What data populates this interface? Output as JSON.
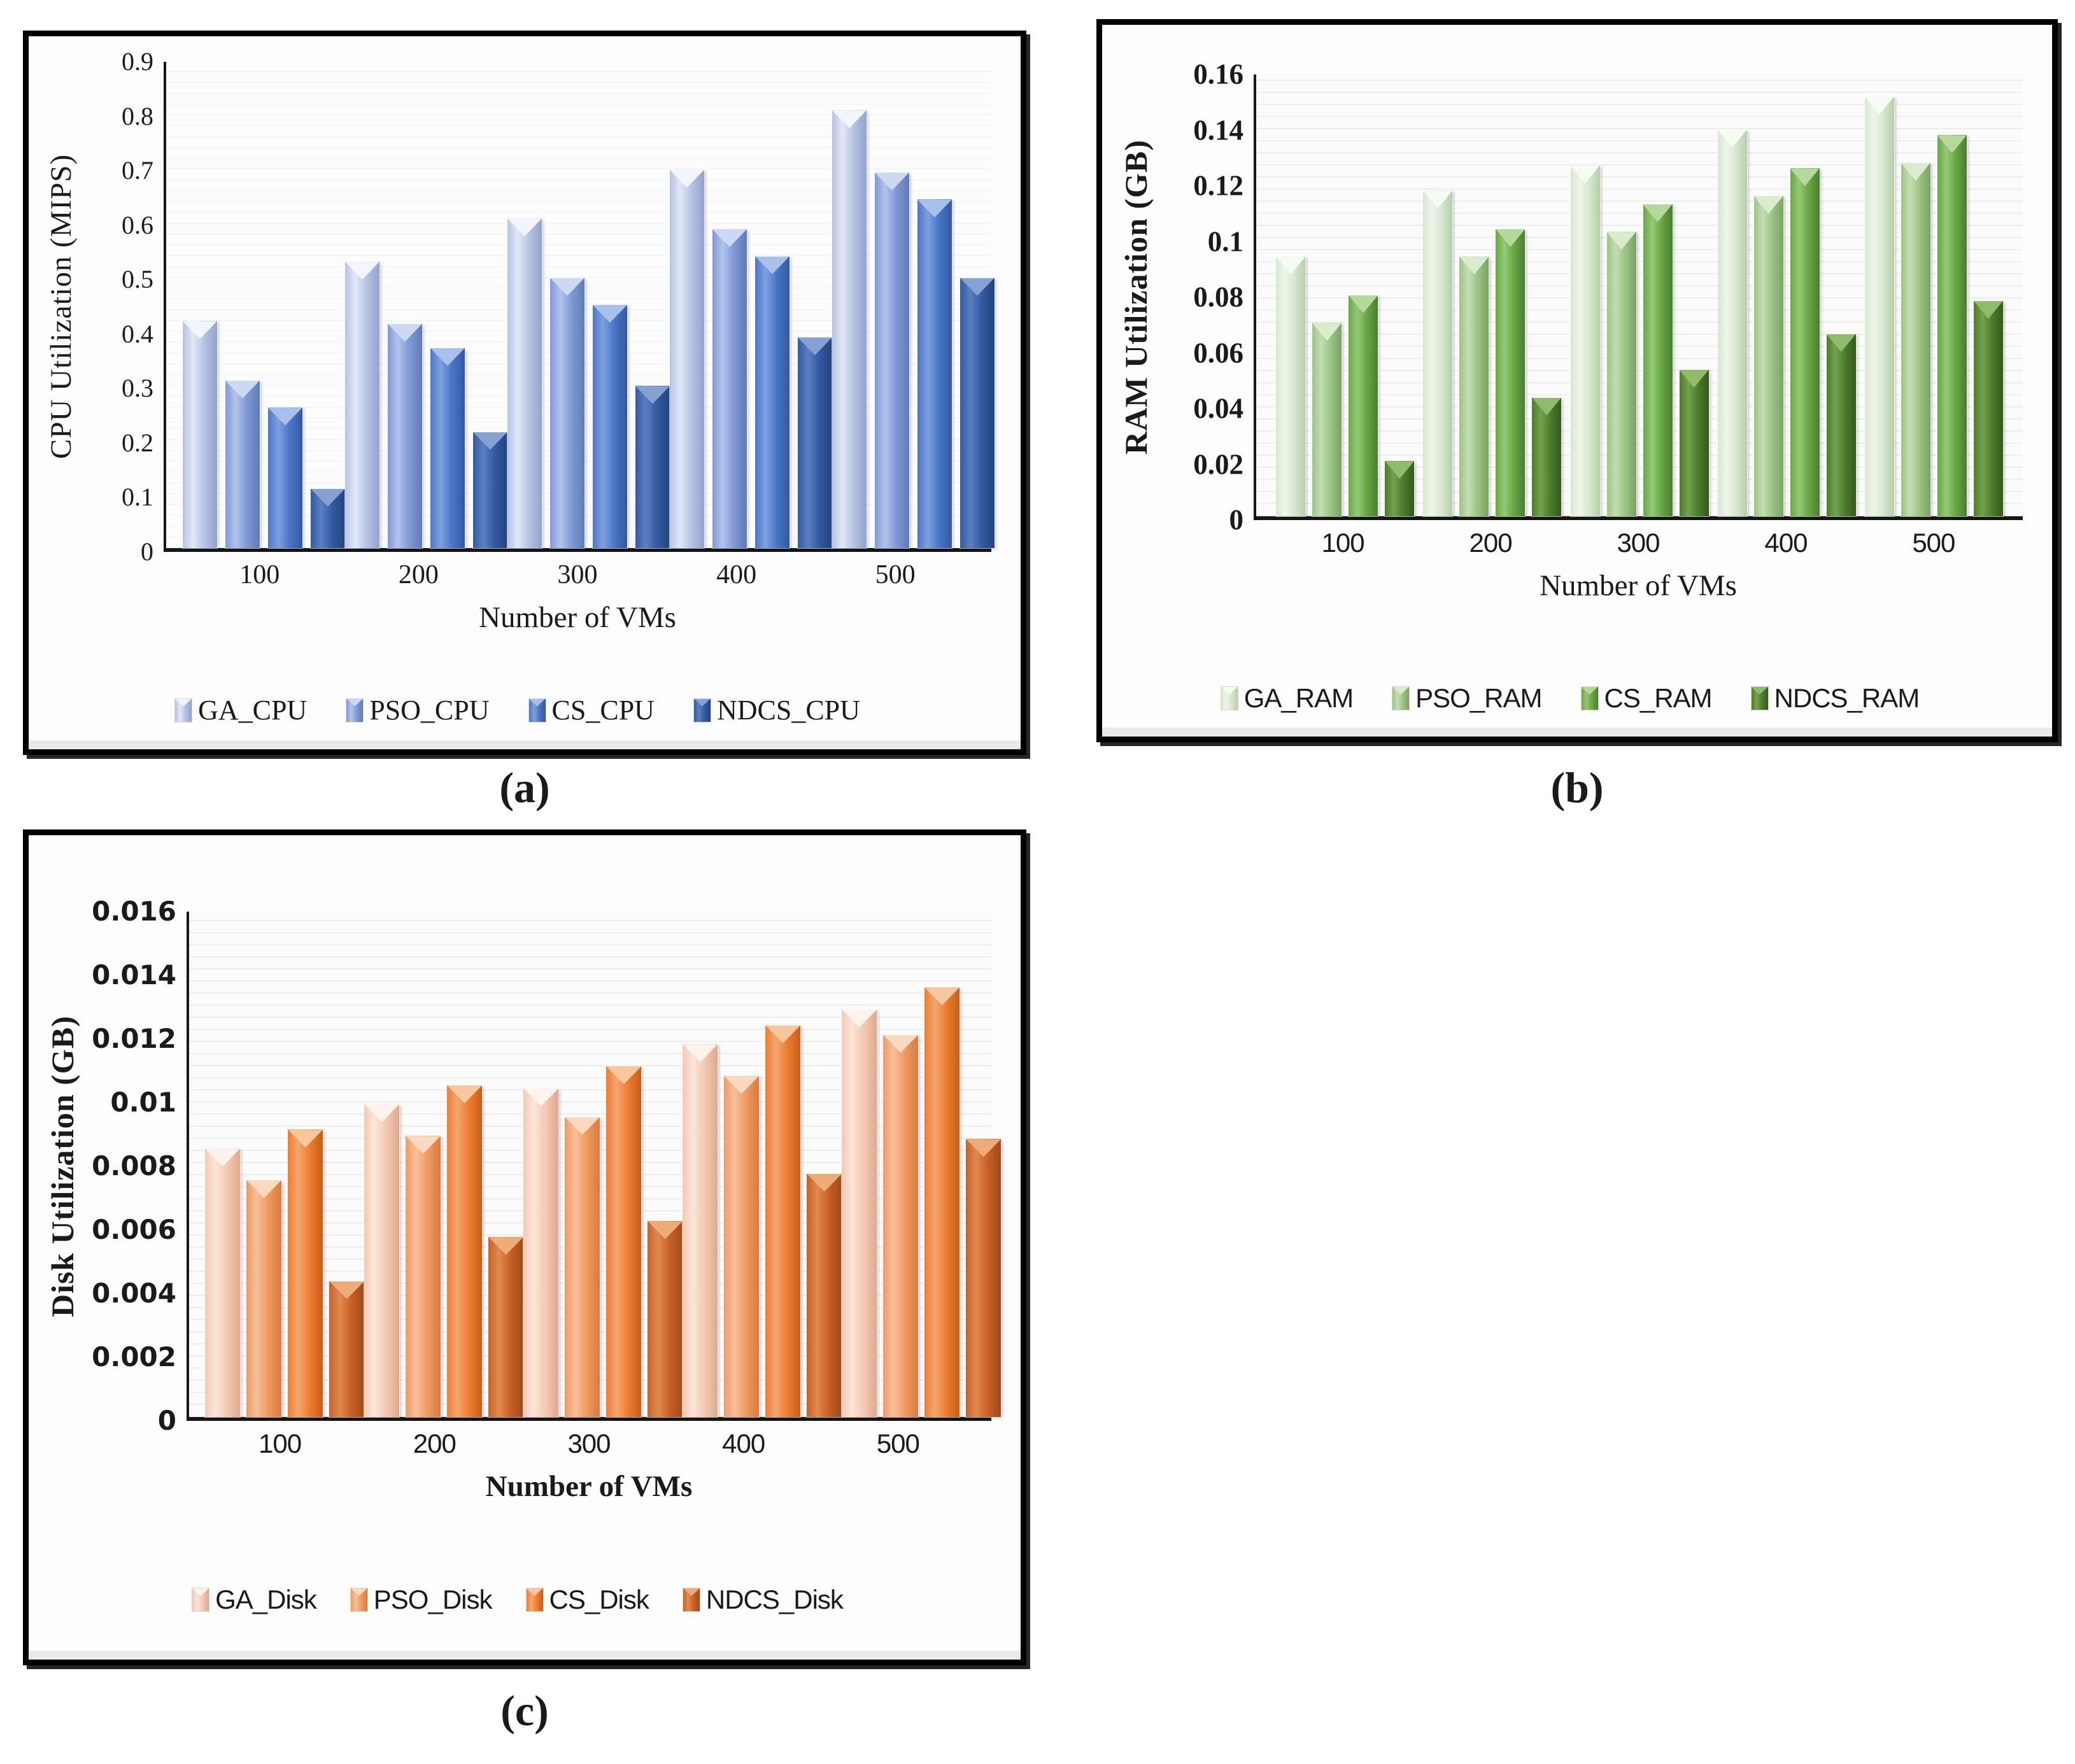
{
  "figure": {
    "captions": [
      "(a)",
      "(b)",
      "(c)"
    ]
  },
  "chart_data": [
    {
      "type": "bar",
      "title": "",
      "ylabel": "CPU Utilization (MIPS)",
      "xlabel": "Number of VMs",
      "ylim": [
        0,
        0.9
      ],
      "grid": "horizontal",
      "legend_position": "bottom",
      "yticks": [
        {
          "v": 0,
          "label": "0"
        },
        {
          "v": 0.1,
          "label": "0.1"
        },
        {
          "v": 0.2,
          "label": "0.2"
        },
        {
          "v": 0.3,
          "label": "0.3"
        },
        {
          "v": 0.4,
          "label": "0.4"
        },
        {
          "v": 0.5,
          "label": "0.5"
        },
        {
          "v": 0.6,
          "label": "0.6"
        },
        {
          "v": 0.7,
          "label": "0.7"
        },
        {
          "v": 0.8,
          "label": "0.8"
        },
        {
          "v": 0.9,
          "label": "0.9"
        }
      ],
      "categories": [
        "100",
        "200",
        "300",
        "400",
        "500"
      ],
      "series": [
        {
          "name": "GA_CPU",
          "values": [
            0.42,
            0.53,
            0.61,
            0.7,
            0.81
          ],
          "color": {
            "base": "#b7c3e4",
            "light": "#e2e8f6",
            "dark": "#93a3cd",
            "notch": "#f2f5fc"
          }
        },
        {
          "name": "PSO_CPU",
          "values": [
            0.31,
            0.415,
            0.5,
            0.59,
            0.695
          ],
          "color": {
            "base": "#8099d6",
            "light": "#b3c3ea",
            "dark": "#5f7ab8",
            "notch": "#cdd9f2"
          }
        },
        {
          "name": "CS_CPU",
          "values": [
            0.26,
            0.37,
            0.45,
            0.54,
            0.645
          ],
          "color": {
            "base": "#4a76c8",
            "light": "#7fa0de",
            "dark": "#33589e",
            "notch": "#a9c0ea"
          }
        },
        {
          "name": "NDCS_CPU",
          "values": [
            0.11,
            0.215,
            0.3,
            0.39,
            0.5
          ],
          "color": {
            "base": "#325ba4",
            "light": "#5c7fc0",
            "dark": "#24437c",
            "notch": "#87a2d2"
          }
        }
      ]
    },
    {
      "type": "bar",
      "title": "",
      "ylabel": "RAM Utilization (GB)",
      "xlabel": "Number of VMs",
      "ylim": [
        0,
        0.16
      ],
      "grid": "horizontal",
      "legend_position": "bottom",
      "yticks": [
        {
          "v": 0,
          "label": "0"
        },
        {
          "v": 0.02,
          "label": "0.02"
        },
        {
          "v": 0.04,
          "label": "0.04"
        },
        {
          "v": 0.06,
          "label": "0.06"
        },
        {
          "v": 0.08,
          "label": "0.08"
        },
        {
          "v": 0.1,
          "label": "0.1"
        },
        {
          "v": 0.12,
          "label": "0.12"
        },
        {
          "v": 0.14,
          "label": "0.14"
        },
        {
          "v": 0.16,
          "label": "0.16"
        }
      ],
      "categories": [
        "100",
        "200",
        "300",
        "400",
        "500"
      ],
      "series": [
        {
          "name": "GA_RAM",
          "values": [
            0.094,
            0.118,
            0.127,
            0.14,
            0.152
          ],
          "color": {
            "base": "#d8e7d0",
            "light": "#eef6ea",
            "dark": "#b5cfa8",
            "notch": "#f6fbf3"
          }
        },
        {
          "name": "PSO_RAM",
          "values": [
            0.07,
            0.094,
            0.103,
            0.116,
            0.128
          ],
          "color": {
            "base": "#9cc483",
            "light": "#c4ddb4",
            "dark": "#7ba263",
            "notch": "#daeccd"
          }
        },
        {
          "name": "CS_RAM",
          "values": [
            0.08,
            0.104,
            0.113,
            0.126,
            0.138
          ],
          "color": {
            "base": "#66a844",
            "light": "#96c877",
            "dark": "#4c7d30",
            "notch": "#b4d99a"
          }
        },
        {
          "name": "NDCS_RAM",
          "values": [
            0.02,
            0.043,
            0.053,
            0.066,
            0.078
          ],
          "color": {
            "base": "#4b7d2d",
            "light": "#74a24f",
            "dark": "#36591e",
            "notch": "#91ba6b"
          }
        }
      ]
    },
    {
      "type": "bar",
      "title": "",
      "ylabel": "Disk Utilization (GB)",
      "xlabel": "Number of VMs",
      "ylim": [
        0,
        0.016
      ],
      "grid": "horizontal",
      "legend_position": "bottom",
      "yticks": [
        {
          "v": 0,
          "label": "0"
        },
        {
          "v": 0.002,
          "label": "0.002"
        },
        {
          "v": 0.004,
          "label": "0.004"
        },
        {
          "v": 0.006,
          "label": "0.006"
        },
        {
          "v": 0.008,
          "label": "0.008"
        },
        {
          "v": 0.01,
          "label": "0.01"
        },
        {
          "v": 0.012,
          "label": "0.012"
        },
        {
          "v": 0.014,
          "label": "0.014"
        },
        {
          "v": 0.016,
          "label": "0.016"
        }
      ],
      "categories": [
        "100",
        "200",
        "300",
        "400",
        "500"
      ],
      "series": [
        {
          "name": "GA_Disk",
          "values": [
            0.0085,
            0.0099,
            0.0104,
            0.0118,
            0.0129
          ],
          "color": {
            "base": "#f4cab4",
            "light": "#fbe5d9",
            "dark": "#e0a88c",
            "notch": "#fdf2ec"
          }
        },
        {
          "name": "PSO_Disk",
          "values": [
            0.0075,
            0.0089,
            0.0095,
            0.0108,
            0.0121
          ],
          "color": {
            "base": "#f09a62",
            "light": "#f7c09a",
            "dark": "#d97b3e",
            "notch": "#fbd9bf"
          }
        },
        {
          "name": "CS_Disk",
          "values": [
            0.0091,
            0.0105,
            0.0111,
            0.0124,
            0.0136
          ],
          "color": {
            "base": "#ed7d31",
            "light": "#f4a770",
            "dark": "#c55f16",
            "notch": "#f8c79e"
          }
        },
        {
          "name": "NDCS_Disk",
          "values": [
            0.0043,
            0.0057,
            0.0062,
            0.0077,
            0.0088
          ],
          "color": {
            "base": "#c96027",
            "light": "#e08a50",
            "dark": "#9e4a18",
            "notch": "#ecab79"
          }
        }
      ]
    }
  ]
}
